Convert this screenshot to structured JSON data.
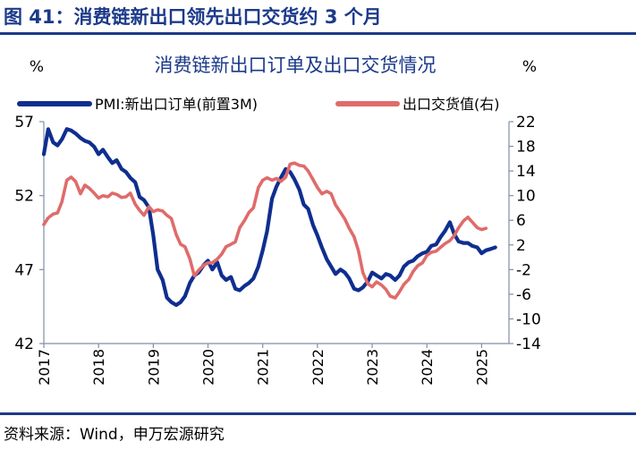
{
  "figure_title": "图 41：消费链新出口领先出口交货约 3 个月",
  "source": "资料来源：Wind，申万宏源研究",
  "chart_data": {
    "type": "line",
    "title": "消费链新出口订单及出口交货情况",
    "left_unit": "%",
    "right_unit": "%",
    "left_axis": {
      "ylim": [
        42,
        57
      ],
      "ticks": [
        "42",
        "47",
        "52",
        "57"
      ]
    },
    "right_axis": {
      "ylim": [
        -14,
        22
      ],
      "ticks": [
        "-14",
        "-10",
        "-6",
        "-2",
        "2",
        "6",
        "10",
        "14",
        "18",
        "22"
      ]
    },
    "x_axis": {
      "xlim": [
        2017.0,
        2025.5
      ],
      "ticks": [
        "2017",
        "2018",
        "2019",
        "2020",
        "2021",
        "2022",
        "2023",
        "2024",
        "2025"
      ]
    },
    "legend": {
      "placement": "top"
    },
    "series": [
      {
        "name": "PMI:新出口订单(前置3M)",
        "axis": "left",
        "color": "#0f2e8f",
        "points": [
          [
            2017.0,
            54.8
          ],
          [
            2017.08,
            56.5
          ],
          [
            2017.17,
            55.6
          ],
          [
            2017.25,
            55.4
          ],
          [
            2017.33,
            55.8
          ],
          [
            2017.42,
            56.5
          ],
          [
            2017.5,
            56.4
          ],
          [
            2017.58,
            56.2
          ],
          [
            2017.67,
            55.9
          ],
          [
            2017.75,
            55.7
          ],
          [
            2017.83,
            55.6
          ],
          [
            2017.92,
            55.3
          ],
          [
            2018.0,
            54.8
          ],
          [
            2018.08,
            55.1
          ],
          [
            2018.17,
            54.6
          ],
          [
            2018.25,
            54.2
          ],
          [
            2018.33,
            54.4
          ],
          [
            2018.42,
            53.8
          ],
          [
            2018.5,
            53.6
          ],
          [
            2018.58,
            53.2
          ],
          [
            2018.67,
            52.9
          ],
          [
            2018.75,
            51.9
          ],
          [
            2018.83,
            51.7
          ],
          [
            2018.92,
            51.2
          ],
          [
            2019.0,
            49.3
          ],
          [
            2019.08,
            47.0
          ],
          [
            2019.17,
            46.3
          ],
          [
            2019.25,
            45.1
          ],
          [
            2019.33,
            44.8
          ],
          [
            2019.42,
            44.6
          ],
          [
            2019.5,
            44.8
          ],
          [
            2019.58,
            45.2
          ],
          [
            2019.67,
            46.1
          ],
          [
            2019.75,
            46.6
          ],
          [
            2019.83,
            46.8
          ],
          [
            2019.92,
            47.3
          ],
          [
            2020.0,
            47.6
          ],
          [
            2020.08,
            47.0
          ],
          [
            2020.17,
            47.5
          ],
          [
            2020.25,
            46.6
          ],
          [
            2020.33,
            46.3
          ],
          [
            2020.42,
            46.5
          ],
          [
            2020.5,
            45.7
          ],
          [
            2020.58,
            45.6
          ],
          [
            2020.67,
            45.9
          ],
          [
            2020.75,
            46.1
          ],
          [
            2020.83,
            46.4
          ],
          [
            2020.92,
            47.2
          ],
          [
            2021.0,
            48.3
          ],
          [
            2021.08,
            49.6
          ],
          [
            2021.17,
            51.8
          ],
          [
            2021.25,
            52.6
          ],
          [
            2021.33,
            53.2
          ],
          [
            2021.42,
            53.8
          ],
          [
            2021.5,
            53.6
          ],
          [
            2021.58,
            53.1
          ],
          [
            2021.67,
            52.4
          ],
          [
            2021.75,
            51.4
          ],
          [
            2021.83,
            51.1
          ],
          [
            2021.92,
            50.0
          ],
          [
            2022.0,
            49.3
          ],
          [
            2022.08,
            48.5
          ],
          [
            2022.17,
            47.7
          ],
          [
            2022.25,
            47.2
          ],
          [
            2022.33,
            46.7
          ],
          [
            2022.42,
            47.0
          ],
          [
            2022.5,
            46.8
          ],
          [
            2022.58,
            46.4
          ],
          [
            2022.67,
            45.7
          ],
          [
            2022.75,
            45.6
          ],
          [
            2022.83,
            45.8
          ],
          [
            2022.92,
            46.2
          ],
          [
            2023.0,
            46.8
          ],
          [
            2023.08,
            46.6
          ],
          [
            2023.17,
            46.4
          ],
          [
            2023.25,
            46.7
          ],
          [
            2023.33,
            46.6
          ],
          [
            2023.42,
            46.3
          ],
          [
            2023.5,
            46.6
          ],
          [
            2023.58,
            47.2
          ],
          [
            2023.67,
            47.5
          ],
          [
            2023.75,
            47.6
          ],
          [
            2023.83,
            47.9
          ],
          [
            2023.92,
            48.1
          ],
          [
            2024.0,
            48.2
          ],
          [
            2024.08,
            48.6
          ],
          [
            2024.17,
            48.7
          ],
          [
            2024.25,
            49.2
          ],
          [
            2024.33,
            49.6
          ],
          [
            2024.42,
            50.2
          ],
          [
            2024.5,
            49.4
          ],
          [
            2024.58,
            48.9
          ],
          [
            2024.67,
            48.8
          ],
          [
            2024.75,
            48.8
          ],
          [
            2024.83,
            48.6
          ],
          [
            2024.92,
            48.5
          ],
          [
            2025.0,
            48.1
          ],
          [
            2025.08,
            48.3
          ],
          [
            2025.17,
            48.4
          ],
          [
            2025.25,
            48.5
          ]
        ]
      },
      {
        "name": "出口交货值(右)",
        "axis": "right",
        "color": "#e06b6b",
        "points": [
          [
            2017.0,
            5.3
          ],
          [
            2017.08,
            6.4
          ],
          [
            2017.17,
            7.0
          ],
          [
            2017.25,
            7.2
          ],
          [
            2017.33,
            9.0
          ],
          [
            2017.42,
            12.5
          ],
          [
            2017.5,
            13.0
          ],
          [
            2017.58,
            12.3
          ],
          [
            2017.67,
            10.3
          ],
          [
            2017.75,
            11.7
          ],
          [
            2017.83,
            11.2
          ],
          [
            2017.92,
            10.4
          ],
          [
            2018.0,
            9.6
          ],
          [
            2018.08,
            10.0
          ],
          [
            2018.17,
            9.8
          ],
          [
            2018.25,
            10.4
          ],
          [
            2018.33,
            10.2
          ],
          [
            2018.42,
            9.7
          ],
          [
            2018.5,
            9.8
          ],
          [
            2018.58,
            10.4
          ],
          [
            2018.67,
            8.6
          ],
          [
            2018.75,
            7.6
          ],
          [
            2018.83,
            6.8
          ],
          [
            2018.92,
            8.2
          ],
          [
            2019.0,
            7.4
          ],
          [
            2019.08,
            7.7
          ],
          [
            2019.17,
            7.5
          ],
          [
            2019.25,
            6.8
          ],
          [
            2019.33,
            6.3
          ],
          [
            2019.42,
            3.7
          ],
          [
            2019.5,
            2.1
          ],
          [
            2019.58,
            1.7
          ],
          [
            2019.67,
            -0.3
          ],
          [
            2019.75,
            -3.0
          ],
          [
            2019.83,
            -2.1
          ],
          [
            2019.92,
            -1.3
          ],
          [
            2020.0,
            -0.9
          ],
          [
            2020.08,
            -0.9
          ],
          [
            2020.17,
            -0.3
          ],
          [
            2020.25,
            0.5
          ],
          [
            2020.33,
            1.7
          ],
          [
            2020.42,
            2.1
          ],
          [
            2020.5,
            2.5
          ],
          [
            2020.58,
            4.8
          ],
          [
            2020.67,
            6.0
          ],
          [
            2020.75,
            7.3
          ],
          [
            2020.83,
            8.0
          ],
          [
            2020.92,
            11.3
          ],
          [
            2021.0,
            12.5
          ],
          [
            2021.08,
            12.9
          ],
          [
            2021.17,
            12.5
          ],
          [
            2021.25,
            12.8
          ],
          [
            2021.33,
            12.3
          ],
          [
            2021.42,
            13.0
          ],
          [
            2021.5,
            15.1
          ],
          [
            2021.58,
            15.3
          ],
          [
            2021.67,
            14.9
          ],
          [
            2021.75,
            14.8
          ],
          [
            2021.83,
            14.0
          ],
          [
            2021.92,
            12.6
          ],
          [
            2022.0,
            11.3
          ],
          [
            2022.08,
            10.3
          ],
          [
            2022.17,
            10.7
          ],
          [
            2022.25,
            10.3
          ],
          [
            2022.33,
            8.5
          ],
          [
            2022.42,
            7.3
          ],
          [
            2022.5,
            6.2
          ],
          [
            2022.58,
            4.7
          ],
          [
            2022.67,
            3.3
          ],
          [
            2022.75,
            1.0
          ],
          [
            2022.83,
            -2.5
          ],
          [
            2022.92,
            -4.3
          ],
          [
            2023.0,
            -4.8
          ],
          [
            2023.08,
            -4.0
          ],
          [
            2023.17,
            -4.5
          ],
          [
            2023.25,
            -5.2
          ],
          [
            2023.33,
            -6.3
          ],
          [
            2023.42,
            -6.6
          ],
          [
            2023.5,
            -5.6
          ],
          [
            2023.58,
            -4.4
          ],
          [
            2023.67,
            -3.6
          ],
          [
            2023.75,
            -2.3
          ],
          [
            2023.83,
            -1.4
          ],
          [
            2023.92,
            -0.9
          ],
          [
            2024.0,
            0.3
          ],
          [
            2024.08,
            0.8
          ],
          [
            2024.17,
            1.0
          ],
          [
            2024.25,
            1.6
          ],
          [
            2024.33,
            2.2
          ],
          [
            2024.42,
            2.7
          ],
          [
            2024.5,
            3.5
          ],
          [
            2024.58,
            4.8
          ],
          [
            2024.67,
            5.9
          ],
          [
            2024.75,
            6.5
          ],
          [
            2024.83,
            5.7
          ],
          [
            2024.92,
            4.8
          ],
          [
            2025.0,
            4.5
          ],
          [
            2025.08,
            4.7
          ]
        ]
      }
    ]
  }
}
